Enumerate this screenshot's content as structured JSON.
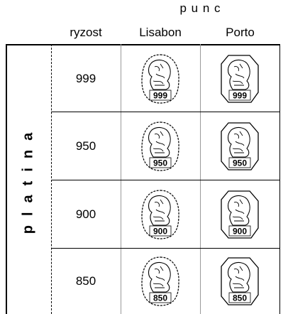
{
  "header": {
    "group": "p u n c",
    "columns": [
      "ryzost",
      "Lisabon",
      "Porto"
    ]
  },
  "side_label": "platina",
  "rows": [
    {
      "fineness": "999",
      "lisabon": "999",
      "porto": "999"
    },
    {
      "fineness": "950",
      "lisabon": "950",
      "porto": "950"
    },
    {
      "fineness": "900",
      "lisabon": "900",
      "porto": "900"
    },
    {
      "fineness": "850",
      "lisabon": "850",
      "porto": "850"
    }
  ]
}
